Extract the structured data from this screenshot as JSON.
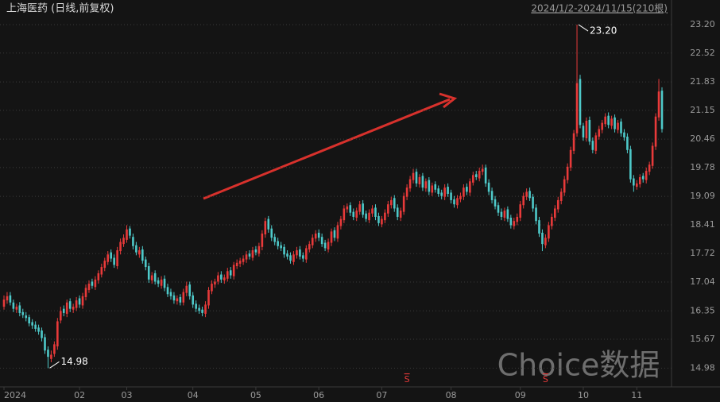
{
  "chart_data": {
    "type": "candlestick",
    "title": "上海医药 (日线,前复权)",
    "subtitle": "2024/1/2-2024/11/15(210根)",
    "watermark": "Choice数据",
    "up_color": "#e83a3a",
    "down_color": "#4ec9c9",
    "grid": true,
    "ylim": [
      14.53,
      23.79
    ],
    "yticks": [
      {
        "value": 14.98,
        "label": "14.98"
      },
      {
        "value": 15.67,
        "label": "15.67"
      },
      {
        "value": 16.35,
        "label": "16.35"
      },
      {
        "value": 17.04,
        "label": "17.04"
      },
      {
        "value": 17.72,
        "label": "17.72"
      },
      {
        "value": 18.41,
        "label": "18.41"
      },
      {
        "value": 19.09,
        "label": "19.09"
      },
      {
        "value": 19.78,
        "label": "19.78"
      },
      {
        "value": 20.46,
        "label": "20.46"
      },
      {
        "value": 21.15,
        "label": "21.15"
      },
      {
        "value": 21.83,
        "label": "21.83"
      },
      {
        "value": 22.52,
        "label": "22.52"
      },
      {
        "value": 23.2,
        "label": "23.20"
      }
    ],
    "xticks": [
      {
        "value": 0,
        "label": "2024"
      },
      {
        "value": 24,
        "label": "02"
      },
      {
        "value": 39,
        "label": "03"
      },
      {
        "value": 60,
        "label": "04"
      },
      {
        "value": 80,
        "label": "05"
      },
      {
        "value": 100,
        "label": "06"
      },
      {
        "value": 120,
        "label": "07"
      },
      {
        "value": 142,
        "label": "08"
      },
      {
        "value": 164,
        "label": "09"
      },
      {
        "value": 184,
        "label": "10"
      },
      {
        "value": 201,
        "label": "11"
      }
    ],
    "annotations": [
      {
        "text": "23.20",
        "at": 182,
        "end": "high"
      },
      {
        "text": "14.98",
        "at": 14,
        "end": "low"
      }
    ],
    "events": [
      {
        "at": 128,
        "label": "S"
      },
      {
        "at": 172,
        "label": "S"
      }
    ],
    "open": [
      16.45,
      16.6,
      16.72,
      16.55,
      16.38,
      16.48,
      16.32,
      16.24,
      16.2,
      16.08,
      16.02,
      15.95,
      15.88,
      15.72,
      15.42,
      15.2,
      15.32,
      15.5,
      16.12,
      16.4,
      16.28,
      16.58,
      16.38,
      16.42,
      16.65,
      16.48,
      16.68,
      16.85,
      17.05,
      16.92,
      17.08,
      17.22,
      17.38,
      17.52,
      17.75,
      17.62,
      17.42,
      17.78,
      17.95,
      18.05,
      18.32,
      18.12,
      17.92,
      17.7,
      17.82,
      17.58,
      17.42,
      17.08,
      17.25,
      17.08,
      16.95,
      17.12,
      16.92,
      16.8,
      16.72,
      16.58,
      16.68,
      16.55,
      16.78,
      16.98,
      16.72,
      16.52,
      16.42,
      16.38,
      16.28,
      16.48,
      16.82,
      16.98,
      17.05,
      17.22,
      17.08,
      17.12,
      17.32,
      17.18,
      17.42,
      17.48,
      17.52,
      17.58,
      17.72,
      17.62,
      17.82,
      17.72,
      17.88,
      18.18,
      18.55,
      18.32,
      18.12,
      18.02,
      17.92,
      17.88,
      17.72,
      17.68,
      17.52,
      17.68,
      17.82,
      17.68,
      17.58,
      17.82,
      17.92,
      18.08,
      18.22,
      18.12,
      17.98,
      17.82,
      17.98,
      18.28,
      18.08,
      18.38,
      18.52,
      18.78,
      18.88,
      18.72,
      18.58,
      18.72,
      18.92,
      18.68,
      18.52,
      18.68,
      18.82,
      18.62,
      18.42,
      18.52,
      18.68,
      18.88,
      19.05,
      18.82,
      18.58,
      18.72,
      19.08,
      19.28,
      19.48,
      19.68,
      19.38,
      19.58,
      19.28,
      19.48,
      19.18,
      19.38,
      19.28,
      19.18,
      19.08,
      19.32,
      19.18,
      19.02,
      18.88,
      19.02,
      19.08,
      19.32,
      19.18,
      19.42,
      19.62,
      19.52,
      19.68,
      19.78,
      19.42,
      19.22,
      19.02,
      18.88,
      18.72,
      18.58,
      18.78,
      18.58,
      18.38,
      18.48,
      18.58,
      18.88,
      19.08,
      19.22,
      19.08,
      18.82,
      18.52,
      18.22,
      17.92,
      18.08,
      18.38,
      18.58,
      18.78,
      18.98,
      19.18,
      19.48,
      19.78,
      20.18,
      20.6,
      21.9,
      20.78,
      20.48,
      20.92,
      20.42,
      20.18,
      20.52,
      20.68,
      20.82,
      21.02,
      20.78,
      20.98,
      20.68,
      20.88,
      20.62,
      20.52,
      20.22,
      19.52,
      19.32,
      19.38,
      19.58,
      19.48,
      19.68,
      19.82,
      20.28,
      20.98,
      21.62
    ],
    "high": [
      16.72,
      16.8,
      16.8,
      16.62,
      16.52,
      16.56,
      16.4,
      16.32,
      16.26,
      16.15,
      16.1,
      16.02,
      15.95,
      15.8,
      15.5,
      15.4,
      15.62,
      16.18,
      16.45,
      16.48,
      16.62,
      16.65,
      16.52,
      16.68,
      16.72,
      16.78,
      16.98,
      17.08,
      17.12,
      17.18,
      17.32,
      17.48,
      17.62,
      17.78,
      17.82,
      17.7,
      17.88,
      18.08,
      18.18,
      18.4,
      18.38,
      18.2,
      18.0,
      17.88,
      17.9,
      17.65,
      17.5,
      17.28,
      17.32,
      17.15,
      17.18,
      17.2,
      17.0,
      16.88,
      16.8,
      16.72,
      16.75,
      16.88,
      17.05,
      17.05,
      16.8,
      16.6,
      16.5,
      16.45,
      16.58,
      16.92,
      17.08,
      17.12,
      17.28,
      17.3,
      17.22,
      17.38,
      17.4,
      17.52,
      17.58,
      17.62,
      17.68,
      17.78,
      17.8,
      17.88,
      17.9,
      17.98,
      18.28,
      18.58,
      18.62,
      18.4,
      18.2,
      18.1,
      18.0,
      17.95,
      17.8,
      17.75,
      17.78,
      17.88,
      17.9,
      17.75,
      17.92,
      18.02,
      18.18,
      18.28,
      18.3,
      18.2,
      18.05,
      18.08,
      18.32,
      18.35,
      18.48,
      18.62,
      18.88,
      18.92,
      18.95,
      18.8,
      18.82,
      18.98,
      19.0,
      18.75,
      18.78,
      18.88,
      18.9,
      18.7,
      18.62,
      18.78,
      18.98,
      19.08,
      19.12,
      18.9,
      18.82,
      19.18,
      19.38,
      19.58,
      19.75,
      19.75,
      19.62,
      19.65,
      19.52,
      19.55,
      19.42,
      19.45,
      19.35,
      19.25,
      19.38,
      19.4,
      19.25,
      19.1,
      19.12,
      19.18,
      19.38,
      19.4,
      19.52,
      19.68,
      19.7,
      19.78,
      19.85,
      19.85,
      19.5,
      19.3,
      19.1,
      18.95,
      18.8,
      18.82,
      18.85,
      18.65,
      18.58,
      18.68,
      18.98,
      19.18,
      19.28,
      19.3,
      19.15,
      18.9,
      18.6,
      18.3,
      18.18,
      18.48,
      18.68,
      18.88,
      19.08,
      19.28,
      19.58,
      19.88,
      20.28,
      20.68,
      23.2,
      22.0,
      20.85,
      20.98,
      21.0,
      20.5,
      20.62,
      20.78,
      20.92,
      21.08,
      21.1,
      21.02,
      21.05,
      20.92,
      20.95,
      20.7,
      20.6,
      20.3,
      19.6,
      19.48,
      19.62,
      19.65,
      19.78,
      19.92,
      20.38,
      21.08,
      21.9,
      21.7
    ],
    "low": [
      16.38,
      16.52,
      16.48,
      16.32,
      16.3,
      16.22,
      16.18,
      16.1,
      15.98,
      15.92,
      15.85,
      15.78,
      15.62,
      15.32,
      14.98,
      15.12,
      15.25,
      15.42,
      16.05,
      16.22,
      16.2,
      16.32,
      16.3,
      16.35,
      16.42,
      16.4,
      16.6,
      16.78,
      16.88,
      16.85,
      17.0,
      17.15,
      17.3,
      17.45,
      17.52,
      17.38,
      17.35,
      17.7,
      17.88,
      17.98,
      18.08,
      17.82,
      17.68,
      17.62,
      17.48,
      17.32,
      17.02,
      17.0,
      16.98,
      16.92,
      16.88,
      16.82,
      16.68,
      16.62,
      16.52,
      16.5,
      16.48,
      16.48,
      16.7,
      16.62,
      16.42,
      16.32,
      16.28,
      16.22,
      16.2,
      16.4,
      16.75,
      16.9,
      16.98,
      17.02,
      17.0,
      17.05,
      17.12,
      17.1,
      17.35,
      17.4,
      17.45,
      17.5,
      17.58,
      17.55,
      17.68,
      17.65,
      17.8,
      18.1,
      18.22,
      18.02,
      17.92,
      17.82,
      17.78,
      17.62,
      17.58,
      17.48,
      17.45,
      17.6,
      17.58,
      17.52,
      17.5,
      17.75,
      17.85,
      18.0,
      18.02,
      17.88,
      17.78,
      17.75,
      17.9,
      18.02,
      18.0,
      18.3,
      18.45,
      18.7,
      18.62,
      18.52,
      18.5,
      18.65,
      18.58,
      18.48,
      18.45,
      18.6,
      18.52,
      18.38,
      18.35,
      18.45,
      18.6,
      18.8,
      18.72,
      18.52,
      18.5,
      18.65,
      19.0,
      19.2,
      19.4,
      19.32,
      19.3,
      19.22,
      19.2,
      19.12,
      19.1,
      19.18,
      19.08,
      19.02,
      19.0,
      19.08,
      18.92,
      18.82,
      18.8,
      18.95,
      19.0,
      19.12,
      19.1,
      19.35,
      19.48,
      19.45,
      19.6,
      19.32,
      19.12,
      18.92,
      18.78,
      18.62,
      18.52,
      18.5,
      18.48,
      18.32,
      18.3,
      18.4,
      18.5,
      18.8,
      19.0,
      18.98,
      18.72,
      18.42,
      18.12,
      17.78,
      17.85,
      18.0,
      18.3,
      18.5,
      18.7,
      18.9,
      19.1,
      19.4,
      19.7,
      20.1,
      20.52,
      20.72,
      20.42,
      20.4,
      20.32,
      20.12,
      20.1,
      20.45,
      20.6,
      20.75,
      20.72,
      20.7,
      20.62,
      20.6,
      20.52,
      20.42,
      20.12,
      19.42,
      19.2,
      19.25,
      19.3,
      19.42,
      19.4,
      19.6,
      19.75,
      20.2,
      20.9,
      20.62
    ],
    "close": [
      16.62,
      16.7,
      16.55,
      16.4,
      16.45,
      16.3,
      16.25,
      16.18,
      16.05,
      16.0,
      15.92,
      15.85,
      15.7,
      15.4,
      15.25,
      15.3,
      15.55,
      16.1,
      16.35,
      16.3,
      16.55,
      16.4,
      16.45,
      16.6,
      16.5,
      16.7,
      16.9,
      17.0,
      16.95,
      17.1,
      17.25,
      17.4,
      17.55,
      17.7,
      17.6,
      17.45,
      17.8,
      18.0,
      18.1,
      18.3,
      18.15,
      17.9,
      17.75,
      17.8,
      17.55,
      17.4,
      17.1,
      17.2,
      17.05,
      17.0,
      17.1,
      16.9,
      16.75,
      16.7,
      16.6,
      16.65,
      16.55,
      16.8,
      16.95,
      16.7,
      16.5,
      16.4,
      16.35,
      16.3,
      16.5,
      16.85,
      17.0,
      17.05,
      17.2,
      17.1,
      17.15,
      17.3,
      17.2,
      17.45,
      17.5,
      17.55,
      17.6,
      17.7,
      17.65,
      17.8,
      17.75,
      17.9,
      18.2,
      18.5,
      18.3,
      18.1,
      18.0,
      17.9,
      17.85,
      17.7,
      17.65,
      17.55,
      17.7,
      17.8,
      17.65,
      17.6,
      17.85,
      17.95,
      18.1,
      18.2,
      18.1,
      17.95,
      17.85,
      18.0,
      18.25,
      18.1,
      18.4,
      18.55,
      18.8,
      18.85,
      18.7,
      18.6,
      18.75,
      18.9,
      18.65,
      18.55,
      18.7,
      18.8,
      18.6,
      18.45,
      18.55,
      18.7,
      18.9,
      19.0,
      18.8,
      18.6,
      18.75,
      19.1,
      19.3,
      19.5,
      19.65,
      19.4,
      19.55,
      19.3,
      19.45,
      19.2,
      19.35,
      19.25,
      19.15,
      19.1,
      19.3,
      19.15,
      19.0,
      18.9,
      19.05,
      19.1,
      19.3,
      19.2,
      19.45,
      19.6,
      19.55,
      19.7,
      19.75,
      19.4,
      19.2,
      19.0,
      18.85,
      18.7,
      18.6,
      18.75,
      18.55,
      18.4,
      18.5,
      18.6,
      18.9,
      19.1,
      19.2,
      19.05,
      18.8,
      18.5,
      18.2,
      17.95,
      18.1,
      18.4,
      18.6,
      18.8,
      19.0,
      19.2,
      19.5,
      19.8,
      20.2,
      20.6,
      21.8,
      20.8,
      20.5,
      20.9,
      20.4,
      20.2,
      20.55,
      20.7,
      20.85,
      21.0,
      20.8,
      20.95,
      20.7,
      20.85,
      20.6,
      20.5,
      20.2,
      19.5,
      19.35,
      19.4,
      19.55,
      19.5,
      19.7,
      19.85,
      20.3,
      21.0,
      21.6,
      20.7
    ]
  }
}
